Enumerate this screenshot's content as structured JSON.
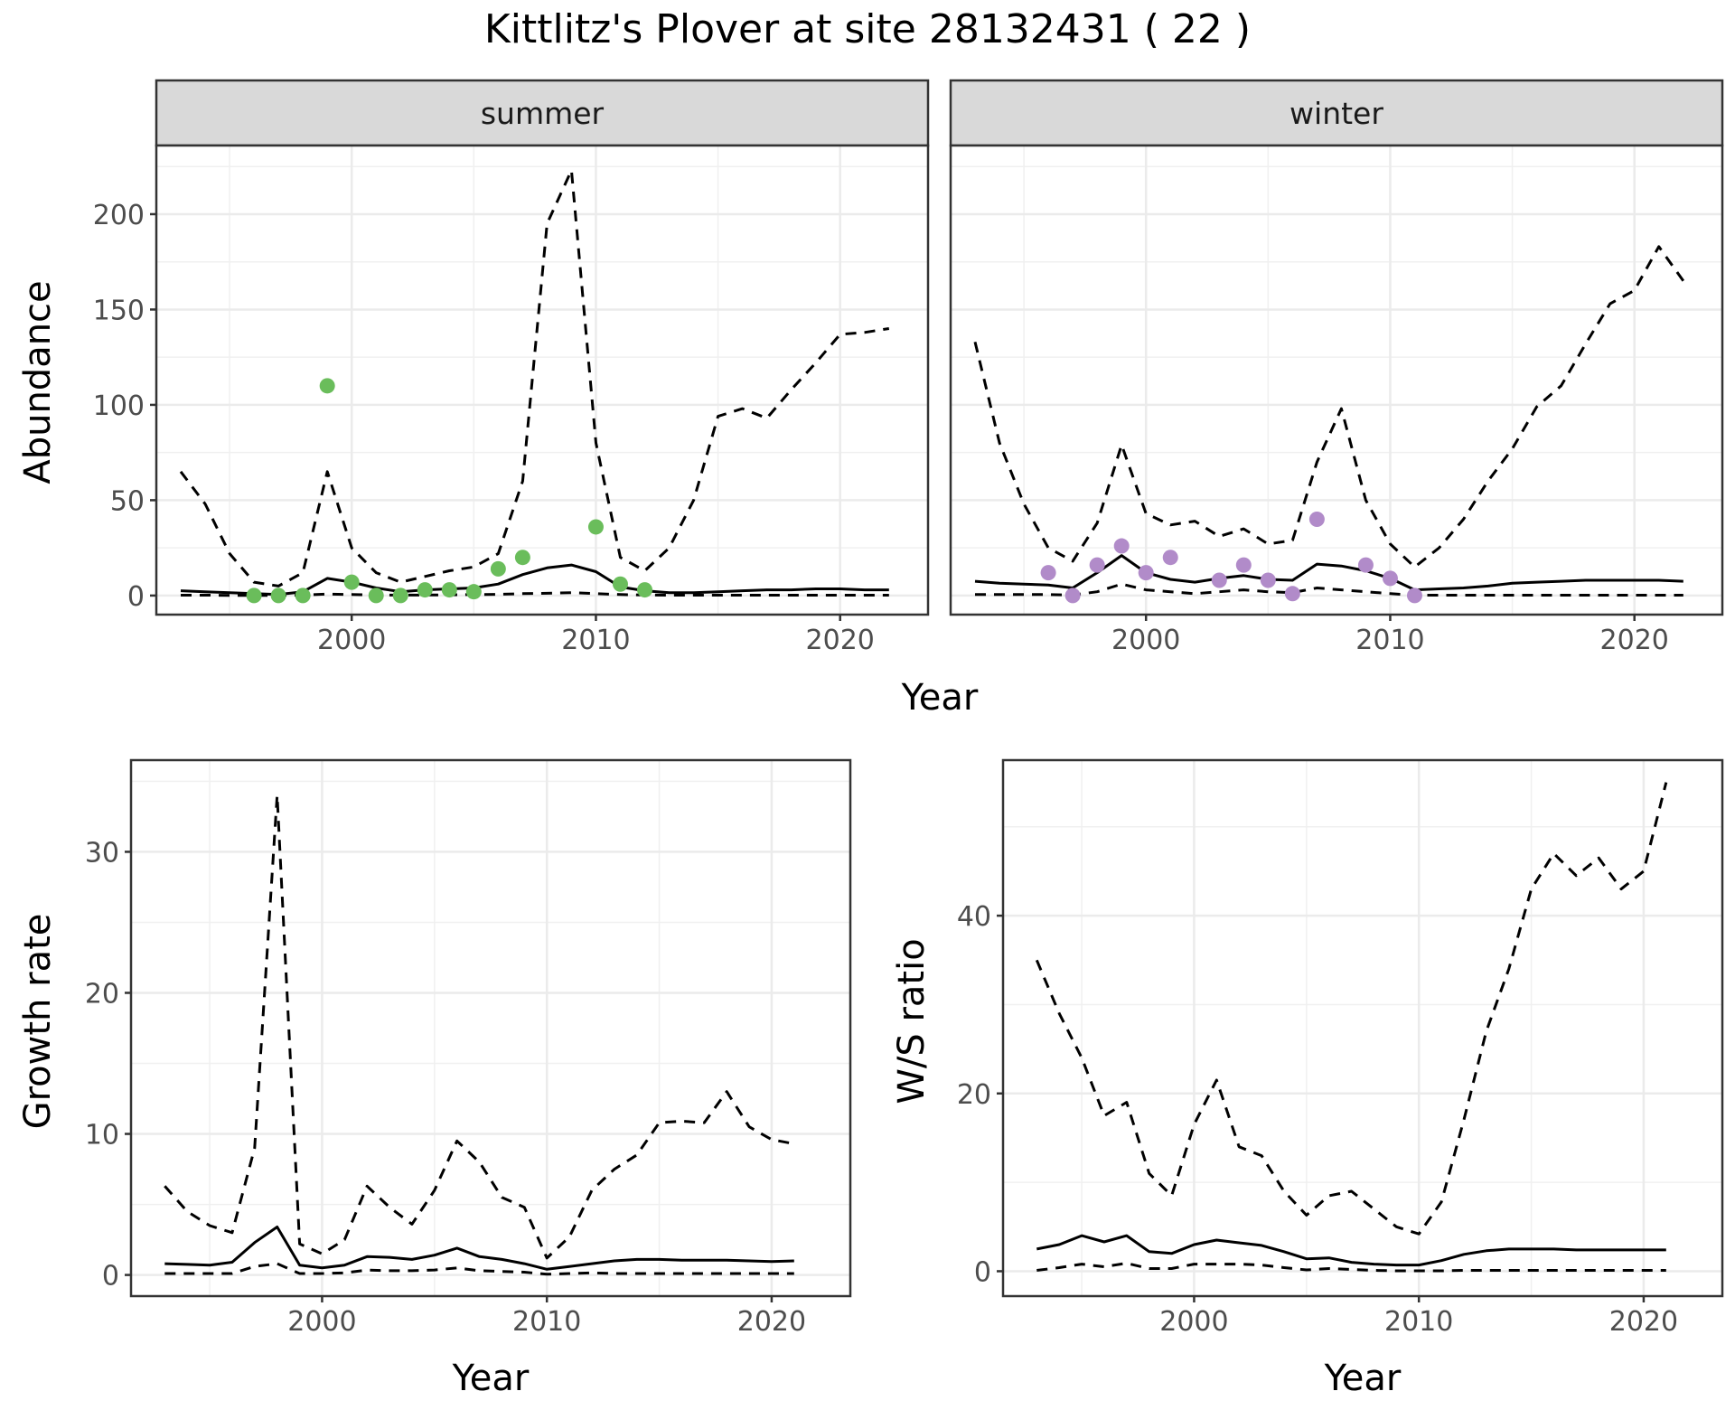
{
  "title": "Kittlitz's Plover at site 28132431 ( 22 )",
  "chart_data": [
    {
      "type": "line",
      "panel": "summer",
      "strip_label": "summer",
      "xlabel": "Year",
      "ylabel": "Abundance",
      "xlim": [
        1992,
        2023.6
      ],
      "ylim": [
        -10,
        236
      ],
      "xticks": [
        2000,
        2010,
        2020
      ],
      "yticks": [
        0,
        50,
        100,
        150,
        200
      ],
      "grid": true,
      "point_color": "#6ABD5B",
      "series": [
        {
          "role": "estimate",
          "style": "solid",
          "x": [
            1993,
            1994,
            1995,
            1996,
            1997,
            1998,
            1999,
            2000,
            2001,
            2002,
            2003,
            2004,
            2005,
            2006,
            2007,
            2008,
            2009,
            2010,
            2011,
            2012,
            2013,
            2014,
            2015,
            2016,
            2017,
            2018,
            2019,
            2020,
            2021,
            2022
          ],
          "values": [
            2.5,
            2,
            1.5,
            1,
            0.5,
            2,
            9,
            7,
            4,
            2,
            3,
            3.5,
            4,
            6,
            11,
            14.5,
            16,
            12.5,
            4.5,
            2.5,
            1.5,
            1.5,
            2,
            2.5,
            3,
            3,
            3.5,
            3.5,
            3,
            3
          ]
        },
        {
          "role": "upper",
          "style": "dashed",
          "x": [
            1993,
            1994,
            1995,
            1996,
            1997,
            1998,
            1999,
            2000,
            2001,
            2002,
            2003,
            2004,
            2005,
            2006,
            2007,
            2008,
            2009,
            2010,
            2011,
            2012,
            2013,
            2014,
            2015,
            2016,
            2017,
            2018,
            2019,
            2020,
            2021,
            2022
          ],
          "values": [
            65,
            48,
            22,
            7,
            5,
            12,
            65,
            25,
            12,
            7,
            10,
            13,
            15,
            22,
            60,
            195,
            223,
            80,
            20,
            13,
            25,
            50,
            94,
            98,
            93,
            108,
            122,
            137,
            138,
            140
          ]
        },
        {
          "role": "lower",
          "style": "dashed",
          "x": [
            1993,
            1994,
            1995,
            1996,
            1997,
            1998,
            1999,
            2000,
            2001,
            2002,
            2003,
            2004,
            2005,
            2006,
            2007,
            2008,
            2009,
            2010,
            2011,
            2012,
            2013,
            2014,
            2015,
            2016,
            2017,
            2018,
            2019,
            2020,
            2021,
            2022
          ],
          "values": [
            0.2,
            0.2,
            0.1,
            0.1,
            0.1,
            0.2,
            0.8,
            0.5,
            0.3,
            0.2,
            0.3,
            0.4,
            0.5,
            0.6,
            1,
            1.2,
            1.5,
            1,
            0.5,
            0.3,
            0.2,
            0.2,
            0.2,
            0.2,
            0.2,
            0.2,
            0.2,
            0.2,
            0.2,
            0.2
          ]
        },
        {
          "role": "observed",
          "style": "points",
          "x": [
            1996,
            1997,
            1998,
            1999,
            2000,
            2001,
            2002,
            2003,
            2004,
            2005,
            2006,
            2007,
            2010,
            2011,
            2012
          ],
          "values": [
            0,
            0,
            0,
            110,
            7,
            0,
            0,
            3,
            3,
            2,
            14,
            20,
            36,
            6,
            3
          ]
        }
      ]
    },
    {
      "type": "line",
      "panel": "winter",
      "strip_label": "winter",
      "xlabel": "Year",
      "ylabel": "Abundance",
      "xlim": [
        1992,
        2023.6
      ],
      "ylim": [
        -10,
        236
      ],
      "xticks": [
        2000,
        2010,
        2020
      ],
      "yticks": [
        0,
        50,
        100,
        150,
        200
      ],
      "grid": true,
      "point_color": "#B18BC9",
      "series": [
        {
          "role": "estimate",
          "style": "solid",
          "x": [
            1993,
            1994,
            1995,
            1996,
            1997,
            1998,
            1999,
            2000,
            2001,
            2002,
            2003,
            2004,
            2005,
            2006,
            2007,
            2008,
            2009,
            2010,
            2011,
            2012,
            2013,
            2014,
            2015,
            2016,
            2017,
            2018,
            2019,
            2020,
            2021,
            2022
          ],
          "values": [
            7.5,
            6.5,
            6,
            5.5,
            4,
            12,
            21,
            12,
            8.5,
            7,
            9,
            10.5,
            8.5,
            8,
            16.5,
            15.5,
            13,
            9,
            3,
            3.5,
            4,
            5,
            6.5,
            7,
            7.5,
            8,
            8,
            8,
            8,
            7.5
          ]
        },
        {
          "role": "upper",
          "style": "dashed",
          "x": [
            1993,
            1994,
            1995,
            1996,
            1997,
            1998,
            1999,
            2000,
            2001,
            2002,
            2003,
            2004,
            2005,
            2006,
            2007,
            2008,
            2009,
            2010,
            2011,
            2012,
            2013,
            2014,
            2015,
            2016,
            2017,
            2018,
            2019,
            2020,
            2021,
            2022
          ],
          "values": [
            133,
            80,
            48,
            25,
            18,
            38,
            79,
            43,
            37,
            39,
            31,
            35,
            27,
            29,
            70,
            98,
            50,
            27,
            15,
            25,
            40,
            60,
            77,
            99,
            110,
            132,
            153,
            160,
            183,
            165
          ]
        },
        {
          "role": "lower",
          "style": "dashed",
          "x": [
            1993,
            1994,
            1995,
            1996,
            1997,
            1998,
            1999,
            2000,
            2001,
            2002,
            2003,
            2004,
            2005,
            2006,
            2007,
            2008,
            2009,
            2010,
            2011,
            2012,
            2013,
            2014,
            2015,
            2016,
            2017,
            2018,
            2019,
            2020,
            2021,
            2022
          ],
          "values": [
            0.5,
            0.5,
            0.5,
            0.5,
            0.3,
            2,
            6,
            3,
            2,
            1,
            2,
            3,
            2,
            1.5,
            4,
            3,
            2,
            1,
            0.2,
            0.2,
            0.2,
            0.2,
            0.2,
            0.2,
            0.2,
            0.2,
            0.2,
            0.2,
            0.2,
            0.2
          ]
        },
        {
          "role": "observed",
          "style": "points",
          "x": [
            1996,
            1997,
            1998,
            1999,
            2000,
            2001,
            2003,
            2004,
            2005,
            2006,
            2007,
            2009,
            2010,
            2011
          ],
          "values": [
            12,
            0,
            16,
            26,
            12,
            20,
            8,
            16,
            8,
            1,
            40,
            16,
            9,
            0
          ]
        }
      ]
    },
    {
      "type": "line",
      "panel": "growth",
      "xlabel": "Year",
      "ylabel": "Growth rate",
      "xlim": [
        1991.5,
        2023.5
      ],
      "ylim": [
        -1.5,
        36.5
      ],
      "xticks": [
        2000,
        2010,
        2020
      ],
      "yticks": [
        0,
        10,
        20,
        30
      ],
      "grid": true,
      "series": [
        {
          "role": "estimate",
          "style": "solid",
          "x": [
            1993,
            1994,
            1995,
            1996,
            1997,
            1998,
            1999,
            2000,
            2001,
            2002,
            2003,
            2004,
            2005,
            2006,
            2007,
            2008,
            2009,
            2010,
            2011,
            2012,
            2013,
            2014,
            2015,
            2016,
            2017,
            2018,
            2019,
            2020,
            2021
          ],
          "values": [
            0.8,
            0.75,
            0.7,
            0.9,
            2.3,
            3.4,
            0.7,
            0.5,
            0.7,
            1.3,
            1.25,
            1.1,
            1.4,
            1.9,
            1.3,
            1.1,
            0.8,
            0.4,
            0.6,
            0.8,
            1,
            1.1,
            1.1,
            1.05,
            1.05,
            1.05,
            1,
            0.95,
            1
          ]
        },
        {
          "role": "upper",
          "style": "dashed",
          "x": [
            1993,
            1994,
            1995,
            1996,
            1997,
            1998,
            1999,
            2000,
            2001,
            2002,
            2003,
            2004,
            2005,
            2006,
            2007,
            2008,
            2009,
            2010,
            2011,
            2012,
            2013,
            2014,
            2015,
            2016,
            2017,
            2018,
            2019,
            2020,
            2021
          ],
          "values": [
            6.3,
            4.5,
            3.5,
            3,
            9,
            34,
            2.2,
            1.5,
            2.5,
            6.3,
            4.8,
            3.6,
            6,
            9.5,
            8,
            5.5,
            4.8,
            1.2,
            2.7,
            6,
            7.5,
            8.5,
            10.8,
            10.9,
            10.8,
            13,
            10.5,
            9.6,
            9.3
          ]
        },
        {
          "role": "lower",
          "style": "dashed",
          "x": [
            1993,
            1994,
            1995,
            1996,
            1997,
            1998,
            1999,
            2000,
            2001,
            2002,
            2003,
            2004,
            2005,
            2006,
            2007,
            2008,
            2009,
            2010,
            2011,
            2012,
            2013,
            2014,
            2015,
            2016,
            2017,
            2018,
            2019,
            2020,
            2021
          ],
          "values": [
            0.1,
            0.1,
            0.1,
            0.1,
            0.6,
            0.8,
            0.1,
            0.1,
            0.15,
            0.35,
            0.3,
            0.3,
            0.35,
            0.5,
            0.3,
            0.25,
            0.2,
            0.05,
            0.1,
            0.15,
            0.1,
            0.1,
            0.1,
            0.1,
            0.1,
            0.1,
            0.1,
            0.1,
            0.1
          ]
        }
      ]
    },
    {
      "type": "line",
      "panel": "ratio",
      "xlabel": "Year",
      "ylabel": "W/S ratio",
      "xlim": [
        1991.5,
        2023.5
      ],
      "ylim": [
        -2.8,
        57.5
      ],
      "xticks": [
        2000,
        2010,
        2020
      ],
      "yticks": [
        0,
        20,
        40
      ],
      "grid": true,
      "series": [
        {
          "role": "estimate",
          "style": "solid",
          "x": [
            1993,
            1994,
            1995,
            1996,
            1997,
            1998,
            1999,
            2000,
            2001,
            2002,
            2003,
            2004,
            2005,
            2006,
            2007,
            2008,
            2009,
            2010,
            2011,
            2012,
            2013,
            2014,
            2015,
            2016,
            2017,
            2018,
            2019,
            2020,
            2021
          ],
          "values": [
            2.5,
            3,
            4,
            3.3,
            4,
            2.2,
            2,
            3,
            3.5,
            3.2,
            2.9,
            2.2,
            1.4,
            1.5,
            1,
            0.8,
            0.7,
            0.7,
            1.2,
            1.9,
            2.3,
            2.5,
            2.5,
            2.5,
            2.4,
            2.4,
            2.4,
            2.4,
            2.4
          ]
        },
        {
          "role": "upper",
          "style": "dashed",
          "x": [
            1993,
            1994,
            1995,
            1996,
            1997,
            1998,
            1999,
            2000,
            2001,
            2002,
            2003,
            2004,
            2005,
            2006,
            2007,
            2008,
            2009,
            2010,
            2011,
            2012,
            2013,
            2014,
            2015,
            2016,
            2017,
            2018,
            2019,
            2020,
            2021
          ],
          "values": [
            35,
            29,
            24,
            17.5,
            19,
            11,
            8.5,
            16.5,
            21.5,
            14,
            13,
            9,
            6.3,
            8.5,
            9,
            7,
            5,
            4.2,
            7.8,
            17,
            27,
            34,
            43,
            47,
            44.5,
            46.5,
            43,
            45,
            55
          ]
        },
        {
          "role": "lower",
          "style": "dashed",
          "x": [
            1993,
            1994,
            1995,
            1996,
            1997,
            1998,
            1999,
            2000,
            2001,
            2002,
            2003,
            2004,
            2005,
            2006,
            2007,
            2008,
            2009,
            2010,
            2011,
            2012,
            2013,
            2014,
            2015,
            2016,
            2017,
            2018,
            2019,
            2020,
            2021
          ],
          "values": [
            0.1,
            0.4,
            0.8,
            0.5,
            0.9,
            0.3,
            0.3,
            0.8,
            0.8,
            0.8,
            0.7,
            0.4,
            0.15,
            0.3,
            0.2,
            0.1,
            0.05,
            0.05,
            0.05,
            0.1,
            0.1,
            0.1,
            0.1,
            0.1,
            0.1,
            0.1,
            0.1,
            0.1,
            0.1
          ]
        }
      ]
    }
  ]
}
